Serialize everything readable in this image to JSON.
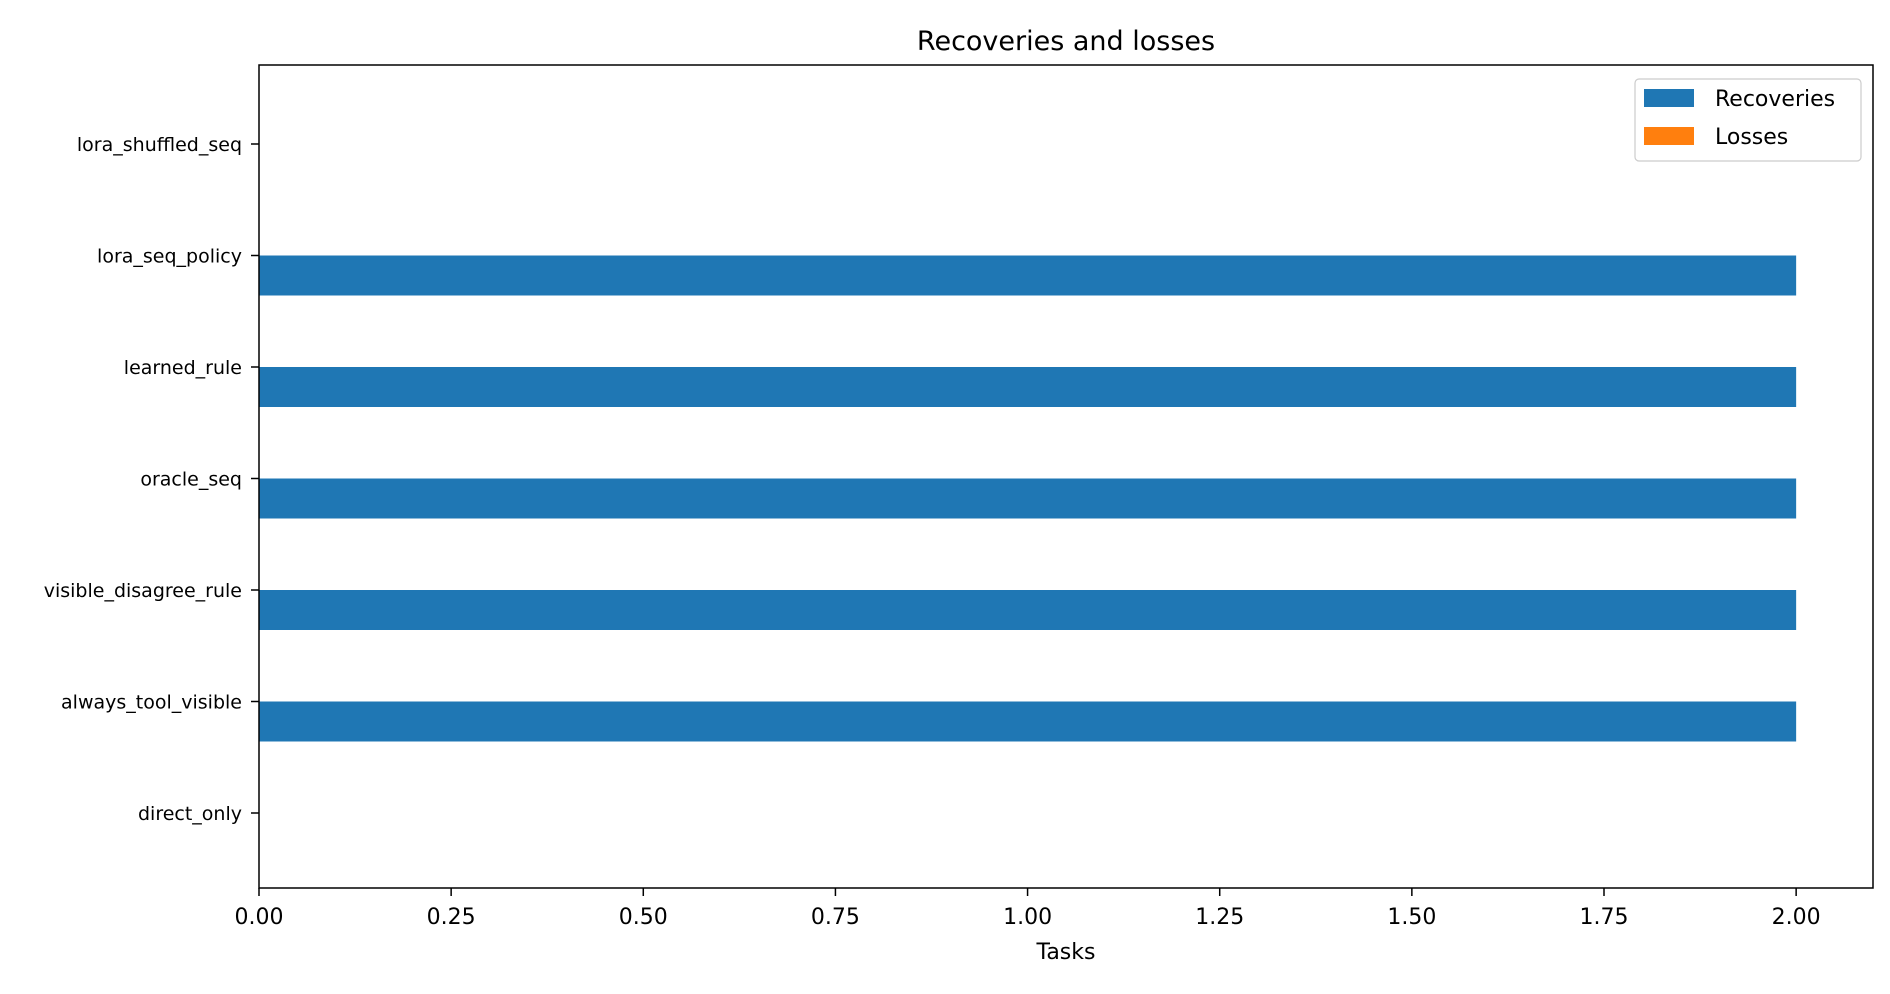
{
  "chart_data": {
    "type": "bar",
    "orientation": "horizontal",
    "title": "Recoveries and losses",
    "xlabel": "Tasks",
    "ylabel": "",
    "categories": [
      "lora_shuffled_seq",
      "lora_seq_policy",
      "learned_rule",
      "oracle_seq",
      "visible_disagree_rule",
      "always_tool_visible",
      "direct_only"
    ],
    "series": [
      {
        "name": "Recoveries",
        "color": "#1f77b4",
        "values": [
          0,
          2,
          2,
          2,
          2,
          2,
          0
        ]
      },
      {
        "name": "Losses",
        "color": "#ff7f0e",
        "values": [
          0,
          0,
          0,
          0,
          0,
          0,
          0
        ]
      }
    ],
    "xlim": [
      0,
      2.1
    ],
    "xticks": [
      "0.00",
      "0.25",
      "0.50",
      "0.75",
      "1.00",
      "1.25",
      "1.50",
      "1.75",
      "2.00"
    ],
    "grid": false,
    "legend_position": "top-right"
  }
}
